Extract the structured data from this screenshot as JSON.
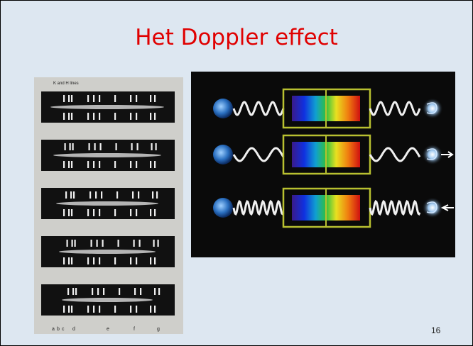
{
  "header": {
    "title": "Het Doppler effect"
  },
  "figure_left": {
    "caption": "K and H lines",
    "line_labels": [
      "a",
      "b",
      "c",
      "d",
      "e",
      "f",
      "g"
    ]
  },
  "footer": {
    "page_number": "16"
  }
}
